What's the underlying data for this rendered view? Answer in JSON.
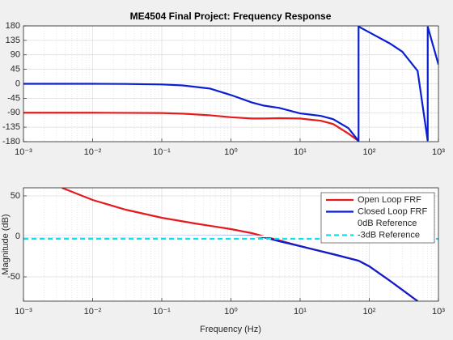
{
  "chart_data": [
    {
      "type": "line",
      "title": "ME4504 Final Project: Frequency Response",
      "log_x": true,
      "grid": true,
      "minor_grid": true,
      "xlim": [
        0.001,
        1000
      ],
      "xticks": [
        {
          "value": 0.001,
          "label": "10⁻³"
        },
        {
          "value": 0.01,
          "label": "10⁻²"
        },
        {
          "value": 0.1,
          "label": "10⁻¹"
        },
        {
          "value": 1,
          "label": "10⁰"
        },
        {
          "value": 10,
          "label": "10¹"
        },
        {
          "value": 100,
          "label": "10²"
        },
        {
          "value": 1000,
          "label": "10³"
        }
      ],
      "ylim": [
        -180,
        180
      ],
      "yticks": [
        -180,
        -135,
        -90,
        -45,
        0,
        45,
        90,
        135,
        180
      ],
      "x": [
        0.001,
        0.003,
        0.01,
        0.03,
        0.1,
        0.2,
        0.5,
        1,
        2,
        3,
        5,
        10,
        20,
        30,
        50,
        70,
        70.01,
        100,
        200,
        300,
        500,
        700,
        700.01,
        1000
      ],
      "series": [
        {
          "name": "Open Loop FRF",
          "color": "#e41a1c",
          "values": [
            -90,
            -90,
            -90,
            -90.5,
            -91,
            -93,
            -98,
            -104,
            -108,
            -108,
            -107,
            -108,
            -115,
            -125,
            -155,
            -178,
            null,
            null,
            null,
            null,
            null,
            null,
            null,
            null
          ]
        },
        {
          "name": "Closed Loop FRF",
          "color": "#0a1fd1",
          "values": [
            0,
            0,
            0,
            -0.5,
            -2,
            -5,
            -15,
            -35,
            -58,
            -68,
            -75,
            -92,
            -100,
            -110,
            -138,
            -178,
            178,
            160,
            125,
            100,
            40,
            -178,
            178,
            60
          ]
        }
      ]
    },
    {
      "type": "line",
      "xlabel": "Frequency (Hz)",
      "ylabel": "Magnitude (dB)",
      "log_x": true,
      "grid": true,
      "minor_grid": true,
      "legend": "northeast",
      "xlim": [
        0.001,
        1000
      ],
      "xticks": [
        {
          "value": 0.001,
          "label": "10⁻³"
        },
        {
          "value": 0.01,
          "label": "10⁻²"
        },
        {
          "value": 0.1,
          "label": "10⁻¹"
        },
        {
          "value": 1,
          "label": "10⁰"
        },
        {
          "value": 10,
          "label": "10¹"
        },
        {
          "value": 100,
          "label": "10²"
        },
        {
          "value": 1000,
          "label": "10³"
        }
      ],
      "ylim": [
        -80,
        60
      ],
      "yticks": [
        -50,
        0,
        50
      ],
      "x": [
        0.001,
        0.0036,
        0.01,
        0.03,
        0.1,
        0.3,
        1,
        2,
        3,
        5,
        10,
        30,
        70,
        100,
        200,
        500,
        1000
      ],
      "series": [
        {
          "name": "Open Loop FRF",
          "color": "#e41a1c",
          "values": [
            null,
            60,
            45,
            33,
            23,
            16,
            9,
            4,
            0,
            -5,
            -12,
            -22,
            -30,
            -37,
            -55,
            -80,
            null
          ]
        },
        {
          "name": "Closed Loop FRF",
          "color": "#0a1fd1",
          "values": [
            0,
            0,
            0,
            0,
            0,
            0.1,
            0.3,
            0.5,
            -1,
            -6,
            -12,
            -22,
            -30,
            -37,
            -55,
            -80,
            null
          ]
        },
        {
          "name": "0dB Reference",
          "color": "#ffffff",
          "values": [
            0,
            0,
            0,
            0,
            0,
            0,
            0,
            0,
            0,
            0,
            0,
            0,
            0,
            0,
            0,
            0,
            0
          ]
        },
        {
          "name": "-3dB Reference",
          "color": "#00e5ee",
          "dash": true,
          "values": [
            -3,
            -3,
            -3,
            -3,
            -3,
            -3,
            -3,
            -3,
            -3,
            -3,
            -3,
            -3,
            -3,
            -3,
            -3,
            -3,
            -3
          ]
        }
      ]
    }
  ]
}
